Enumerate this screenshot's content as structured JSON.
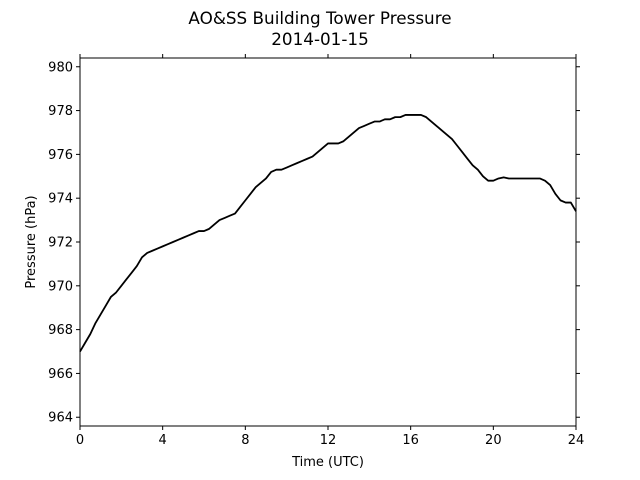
{
  "chart_data": {
    "type": "line",
    "title": "AO&SS Building Tower Pressure",
    "subtitle": "2014-01-15",
    "xlabel": "Time (UTC)",
    "ylabel": "Pressure (hPa)",
    "xlim": [
      0,
      24
    ],
    "ylim": [
      963.6,
      980.4
    ],
    "xticks": [
      0,
      4,
      8,
      12,
      16,
      20,
      24
    ],
    "yticks": [
      964,
      966,
      968,
      970,
      972,
      974,
      976,
      978,
      980
    ],
    "grid": false,
    "line_color": "#000000",
    "series": [
      {
        "x": [
          0,
          0.25,
          0.5,
          0.75,
          1,
          1.25,
          1.5,
          1.75,
          2,
          2.25,
          2.5,
          2.75,
          3,
          3.25,
          3.5,
          3.75,
          4,
          4.25,
          4.5,
          4.75,
          5,
          5.25,
          5.5,
          5.75,
          6,
          6.25,
          6.5,
          6.75,
          7,
          7.25,
          7.5,
          7.75,
          8,
          8.25,
          8.5,
          8.75,
          9,
          9.25,
          9.5,
          9.75,
          10,
          10.25,
          10.5,
          10.75,
          11,
          11.25,
          11.5,
          11.75,
          12,
          12.25,
          12.5,
          12.75,
          13,
          13.25,
          13.5,
          13.75,
          14,
          14.25,
          14.5,
          14.75,
          15,
          15.25,
          15.5,
          15.75,
          16,
          16.25,
          16.5,
          16.75,
          17,
          17.25,
          17.5,
          17.75,
          18,
          18.25,
          18.5,
          18.75,
          19,
          19.25,
          19.5,
          19.75,
          20,
          20.25,
          20.5,
          20.75,
          21,
          21.25,
          21.5,
          21.75,
          22,
          22.25,
          22.5,
          22.75,
          23,
          23.25,
          23.5,
          23.75,
          24
        ],
        "values": [
          967.0,
          967.4,
          967.8,
          968.3,
          968.7,
          969.1,
          969.5,
          969.7,
          970.0,
          970.3,
          970.6,
          970.9,
          971.3,
          971.5,
          971.6,
          971.7,
          971.8,
          971.9,
          972.0,
          972.1,
          972.2,
          972.3,
          972.4,
          972.5,
          972.5,
          972.6,
          972.8,
          973.0,
          973.1,
          973.2,
          973.3,
          973.6,
          973.9,
          974.2,
          974.5,
          974.7,
          974.9,
          975.2,
          975.3,
          975.3,
          975.4,
          975.5,
          975.6,
          975.7,
          975.8,
          975.9,
          976.1,
          976.3,
          976.5,
          976.5,
          976.5,
          976.6,
          976.8,
          977.0,
          977.2,
          977.3,
          977.4,
          977.5,
          977.5,
          977.6,
          977.6,
          977.7,
          977.7,
          977.8,
          977.8,
          977.8,
          977.8,
          977.7,
          977.5,
          977.3,
          977.1,
          976.9,
          976.7,
          976.4,
          976.1,
          975.8,
          975.5,
          975.3,
          975.0,
          974.8,
          974.8,
          974.9,
          974.95,
          974.9,
          974.9,
          974.9,
          974.9,
          974.9,
          974.9,
          974.9,
          974.8,
          974.6,
          974.2,
          973.9,
          973.8,
          973.8,
          973.4
        ]
      }
    ]
  }
}
